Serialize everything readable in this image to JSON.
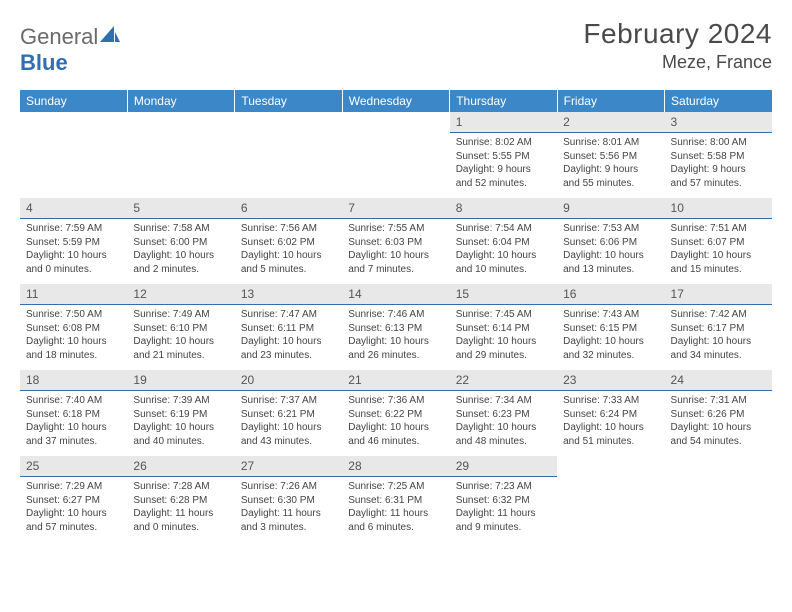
{
  "logo": {
    "word1": "General",
    "word2": "Blue"
  },
  "title": {
    "month": "February 2024",
    "location": "Meze, France"
  },
  "colors": {
    "header_bg": "#3b87c8",
    "header_text": "#ffffff",
    "daynum_bg": "#e8e8e8",
    "daynum_border": "#2f6fb0",
    "body_text": "#444444",
    "title_text": "#4a4a4a",
    "logo_gray": "#6a6a6a",
    "logo_blue": "#2f6fb0"
  },
  "weekdays": [
    "Sunday",
    "Monday",
    "Tuesday",
    "Wednesday",
    "Thursday",
    "Friday",
    "Saturday"
  ],
  "weeks": [
    [
      null,
      null,
      null,
      null,
      {
        "num": "1",
        "sunrise": "Sunrise: 8:02 AM",
        "sunset": "Sunset: 5:55 PM",
        "daylight1": "Daylight: 9 hours",
        "daylight2": "and 52 minutes."
      },
      {
        "num": "2",
        "sunrise": "Sunrise: 8:01 AM",
        "sunset": "Sunset: 5:56 PM",
        "daylight1": "Daylight: 9 hours",
        "daylight2": "and 55 minutes."
      },
      {
        "num": "3",
        "sunrise": "Sunrise: 8:00 AM",
        "sunset": "Sunset: 5:58 PM",
        "daylight1": "Daylight: 9 hours",
        "daylight2": "and 57 minutes."
      }
    ],
    [
      {
        "num": "4",
        "sunrise": "Sunrise: 7:59 AM",
        "sunset": "Sunset: 5:59 PM",
        "daylight1": "Daylight: 10 hours",
        "daylight2": "and 0 minutes."
      },
      {
        "num": "5",
        "sunrise": "Sunrise: 7:58 AM",
        "sunset": "Sunset: 6:00 PM",
        "daylight1": "Daylight: 10 hours",
        "daylight2": "and 2 minutes."
      },
      {
        "num": "6",
        "sunrise": "Sunrise: 7:56 AM",
        "sunset": "Sunset: 6:02 PM",
        "daylight1": "Daylight: 10 hours",
        "daylight2": "and 5 minutes."
      },
      {
        "num": "7",
        "sunrise": "Sunrise: 7:55 AM",
        "sunset": "Sunset: 6:03 PM",
        "daylight1": "Daylight: 10 hours",
        "daylight2": "and 7 minutes."
      },
      {
        "num": "8",
        "sunrise": "Sunrise: 7:54 AM",
        "sunset": "Sunset: 6:04 PM",
        "daylight1": "Daylight: 10 hours",
        "daylight2": "and 10 minutes."
      },
      {
        "num": "9",
        "sunrise": "Sunrise: 7:53 AM",
        "sunset": "Sunset: 6:06 PM",
        "daylight1": "Daylight: 10 hours",
        "daylight2": "and 13 minutes."
      },
      {
        "num": "10",
        "sunrise": "Sunrise: 7:51 AM",
        "sunset": "Sunset: 6:07 PM",
        "daylight1": "Daylight: 10 hours",
        "daylight2": "and 15 minutes."
      }
    ],
    [
      {
        "num": "11",
        "sunrise": "Sunrise: 7:50 AM",
        "sunset": "Sunset: 6:08 PM",
        "daylight1": "Daylight: 10 hours",
        "daylight2": "and 18 minutes."
      },
      {
        "num": "12",
        "sunrise": "Sunrise: 7:49 AM",
        "sunset": "Sunset: 6:10 PM",
        "daylight1": "Daylight: 10 hours",
        "daylight2": "and 21 minutes."
      },
      {
        "num": "13",
        "sunrise": "Sunrise: 7:47 AM",
        "sunset": "Sunset: 6:11 PM",
        "daylight1": "Daylight: 10 hours",
        "daylight2": "and 23 minutes."
      },
      {
        "num": "14",
        "sunrise": "Sunrise: 7:46 AM",
        "sunset": "Sunset: 6:13 PM",
        "daylight1": "Daylight: 10 hours",
        "daylight2": "and 26 minutes."
      },
      {
        "num": "15",
        "sunrise": "Sunrise: 7:45 AM",
        "sunset": "Sunset: 6:14 PM",
        "daylight1": "Daylight: 10 hours",
        "daylight2": "and 29 minutes."
      },
      {
        "num": "16",
        "sunrise": "Sunrise: 7:43 AM",
        "sunset": "Sunset: 6:15 PM",
        "daylight1": "Daylight: 10 hours",
        "daylight2": "and 32 minutes."
      },
      {
        "num": "17",
        "sunrise": "Sunrise: 7:42 AM",
        "sunset": "Sunset: 6:17 PM",
        "daylight1": "Daylight: 10 hours",
        "daylight2": "and 34 minutes."
      }
    ],
    [
      {
        "num": "18",
        "sunrise": "Sunrise: 7:40 AM",
        "sunset": "Sunset: 6:18 PM",
        "daylight1": "Daylight: 10 hours",
        "daylight2": "and 37 minutes."
      },
      {
        "num": "19",
        "sunrise": "Sunrise: 7:39 AM",
        "sunset": "Sunset: 6:19 PM",
        "daylight1": "Daylight: 10 hours",
        "daylight2": "and 40 minutes."
      },
      {
        "num": "20",
        "sunrise": "Sunrise: 7:37 AM",
        "sunset": "Sunset: 6:21 PM",
        "daylight1": "Daylight: 10 hours",
        "daylight2": "and 43 minutes."
      },
      {
        "num": "21",
        "sunrise": "Sunrise: 7:36 AM",
        "sunset": "Sunset: 6:22 PM",
        "daylight1": "Daylight: 10 hours",
        "daylight2": "and 46 minutes."
      },
      {
        "num": "22",
        "sunrise": "Sunrise: 7:34 AM",
        "sunset": "Sunset: 6:23 PM",
        "daylight1": "Daylight: 10 hours",
        "daylight2": "and 48 minutes."
      },
      {
        "num": "23",
        "sunrise": "Sunrise: 7:33 AM",
        "sunset": "Sunset: 6:24 PM",
        "daylight1": "Daylight: 10 hours",
        "daylight2": "and 51 minutes."
      },
      {
        "num": "24",
        "sunrise": "Sunrise: 7:31 AM",
        "sunset": "Sunset: 6:26 PM",
        "daylight1": "Daylight: 10 hours",
        "daylight2": "and 54 minutes."
      }
    ],
    [
      {
        "num": "25",
        "sunrise": "Sunrise: 7:29 AM",
        "sunset": "Sunset: 6:27 PM",
        "daylight1": "Daylight: 10 hours",
        "daylight2": "and 57 minutes."
      },
      {
        "num": "26",
        "sunrise": "Sunrise: 7:28 AM",
        "sunset": "Sunset: 6:28 PM",
        "daylight1": "Daylight: 11 hours",
        "daylight2": "and 0 minutes."
      },
      {
        "num": "27",
        "sunrise": "Sunrise: 7:26 AM",
        "sunset": "Sunset: 6:30 PM",
        "daylight1": "Daylight: 11 hours",
        "daylight2": "and 3 minutes."
      },
      {
        "num": "28",
        "sunrise": "Sunrise: 7:25 AM",
        "sunset": "Sunset: 6:31 PM",
        "daylight1": "Daylight: 11 hours",
        "daylight2": "and 6 minutes."
      },
      {
        "num": "29",
        "sunrise": "Sunrise: 7:23 AM",
        "sunset": "Sunset: 6:32 PM",
        "daylight1": "Daylight: 11 hours",
        "daylight2": "and 9 minutes."
      },
      null,
      null
    ]
  ]
}
